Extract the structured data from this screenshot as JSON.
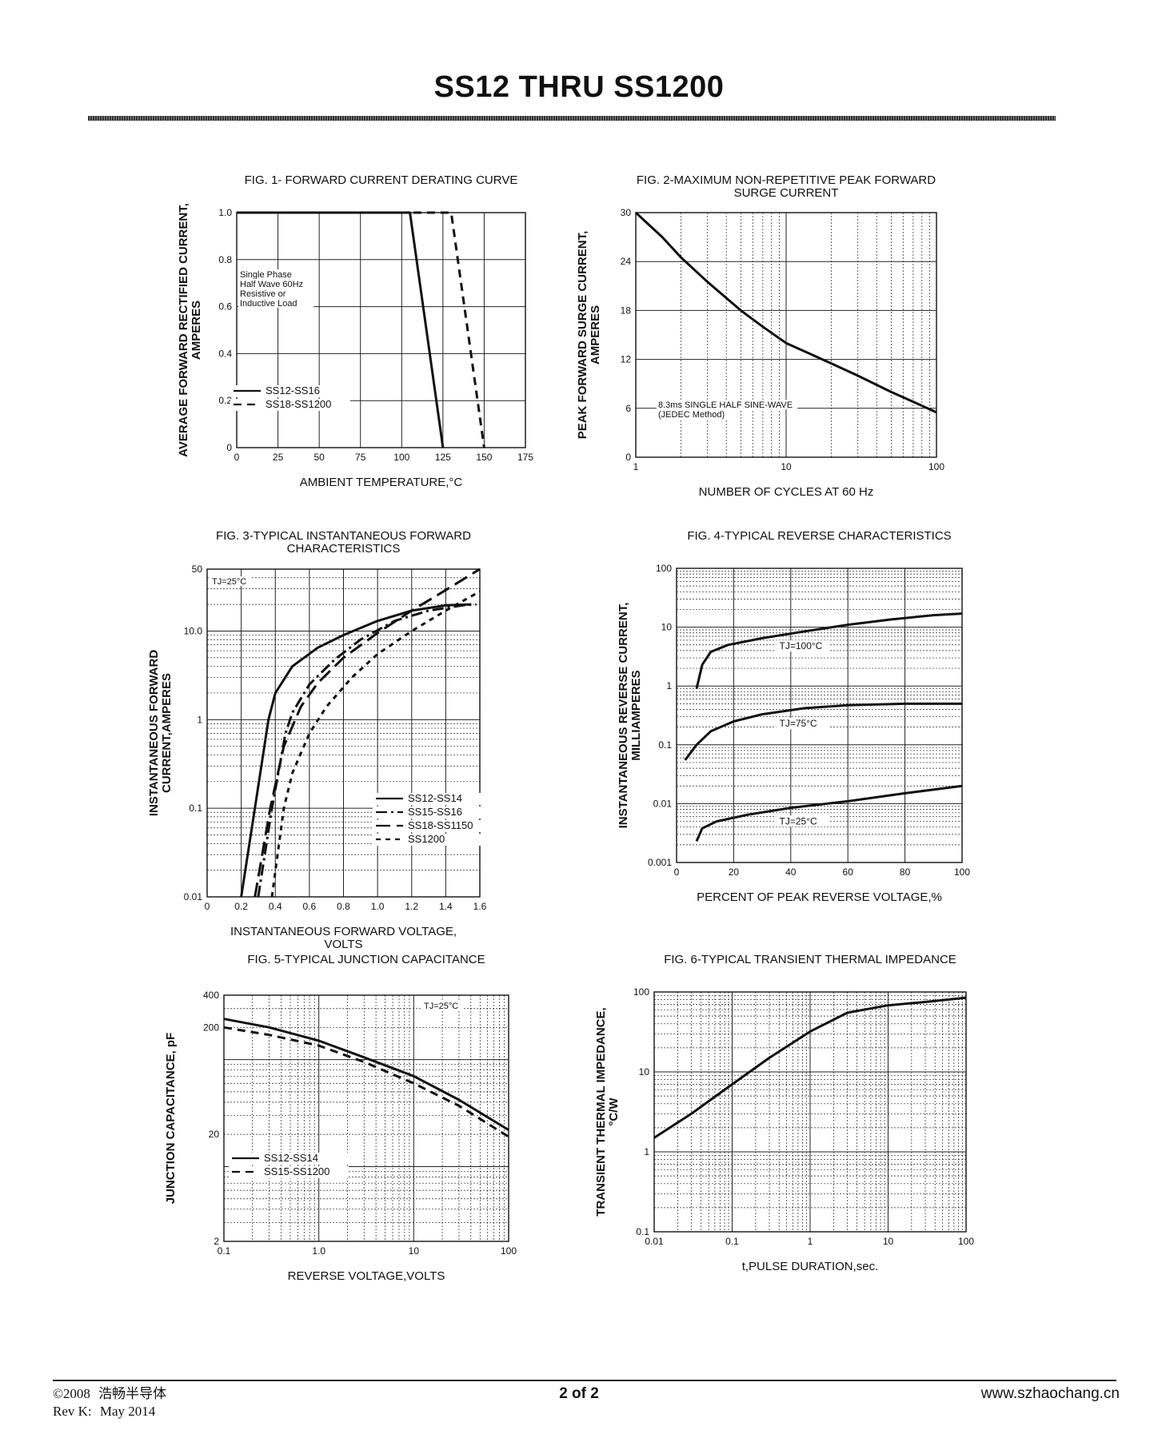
{
  "page": {
    "title": "SS12 THRU SS1200",
    "footer": {
      "copyright": "©2008",
      "company": "浩畅半导体",
      "revision": "Rev K:",
      "date": "May 2014",
      "page_number": "2 of 2",
      "website": "www.szhaochang.cn"
    }
  },
  "chart_data": [
    {
      "id": "fig1",
      "type": "line",
      "title": "FIG. 1- FORWARD CURRENT DERATING CURVE",
      "title2": "",
      "xlabel": "AMBIENT TEMPERATURE,°C",
      "xlabel2": "",
      "ylabel": "AVERAGE FORWARD RECTIFIED CURRENT,",
      "ylabel2": "AMPERES",
      "xscale": "linear",
      "yscale": "linear",
      "xlim": [
        0,
        175
      ],
      "ylim": [
        0,
        1.0
      ],
      "xticks": [
        0,
        25,
        50,
        75,
        100,
        125,
        150,
        175
      ],
      "xtick_labels": [
        "0",
        "25",
        "50",
        "75",
        "100",
        "125",
        "150",
        "175"
      ],
      "yticks": [
        0,
        0.2,
        0.4,
        0.6,
        0.8,
        1.0
      ],
      "ytick_labels": [
        "0",
        "0.2",
        "0.4",
        "0.6",
        "0.8",
        "1.0"
      ],
      "grid": true,
      "annotations": [
        "Single Phase",
        "Half Wave 60Hz",
        "Resistive or",
        "Inductive Load"
      ],
      "series": [
        {
          "name": "SS12-SS16",
          "style": "solid",
          "x": [
            0,
            105,
            125
          ],
          "y": [
            1.0,
            1.0,
            0
          ]
        },
        {
          "name": "SS18-SS1200",
          "style": "dashed",
          "x": [
            0,
            130,
            150
          ],
          "y": [
            1.0,
            1.0,
            0
          ]
        }
      ]
    },
    {
      "id": "fig2",
      "type": "line",
      "title": "FIG. 2-MAXIMUM NON-REPETITIVE PEAK FORWARD",
      "title2": "SURGE CURRENT",
      "xlabel": "NUMBER OF CYCLES AT 60 Hz",
      "xlabel2": "",
      "ylabel": "PEAK FORWARD SURGE CURRENT,",
      "ylabel2": "AMPERES",
      "xscale": "log",
      "yscale": "linear",
      "xlim": [
        1,
        100
      ],
      "ylim": [
        0,
        30
      ],
      "xticks": [
        1,
        10,
        100
      ],
      "xtick_labels": [
        "1",
        "10",
        "100"
      ],
      "yticks": [
        0,
        6,
        12,
        18,
        24,
        30
      ],
      "ytick_labels": [
        "0",
        "6",
        "12",
        "18",
        "24",
        "30"
      ],
      "grid": true,
      "annotations": [
        "8.3ms SINGLE HALF SINE-WAVE",
        "(JEDEC Method)"
      ],
      "series": [
        {
          "name": "",
          "style": "solid",
          "x": [
            1,
            1.5,
            2,
            3,
            5,
            7,
            10,
            20,
            30,
            50,
            70,
            100
          ],
          "y": [
            30,
            27,
            24.5,
            21.5,
            18,
            16,
            14,
            11.5,
            10,
            8,
            6.8,
            5.5
          ]
        }
      ]
    },
    {
      "id": "fig3",
      "type": "line",
      "title": "FIG. 3-TYPICAL INSTANTANEOUS FORWARD",
      "title2": "CHARACTERISTICS",
      "xlabel": "INSTANTANEOUS FORWARD VOLTAGE,",
      "xlabel2": "VOLTS",
      "ylabel": "INSTANTANEOUS FORWARD",
      "ylabel2": "CURRENT,AMPERES",
      "xscale": "linear",
      "yscale": "log",
      "xlim": [
        0,
        1.6
      ],
      "ylim": [
        0.01,
        50
      ],
      "xticks": [
        0,
        0.2,
        0.4,
        0.6,
        0.8,
        1.0,
        1.2,
        1.4,
        1.6
      ],
      "xtick_labels": [
        "0",
        "0.2",
        "0.4",
        "0.6",
        "0.8",
        "1.0",
        "1.2",
        "1.4",
        "1.6"
      ],
      "yticks": [
        0.01,
        0.1,
        1,
        10,
        50
      ],
      "ytick_labels": [
        "0.01",
        "0.1",
        "1",
        "10.0",
        "50"
      ],
      "grid": true,
      "annotations": [
        "TJ=25°C"
      ],
      "series": [
        {
          "name": "SS12-SS14",
          "style": "solid",
          "x": [
            0.2,
            0.28,
            0.36,
            0.4,
            0.5,
            0.65,
            0.8,
            1.0,
            1.2,
            1.4,
            1.55
          ],
          "y": [
            0.01,
            0.1,
            1,
            2,
            4,
            6.5,
            9,
            13,
            17,
            19.5,
            20
          ]
        },
        {
          "name": "SS15-SS16",
          "style": "dash-dot",
          "x": [
            0.3,
            0.38,
            0.46,
            0.5,
            0.6,
            0.75,
            0.9,
            1.1,
            1.3,
            1.5,
            1.58
          ],
          "y": [
            0.01,
            0.1,
            0.7,
            1.2,
            2.5,
            4.8,
            8,
            13,
            17,
            19.5,
            20
          ]
        },
        {
          "name": "SS18-SS1150",
          "style": "long-dash",
          "x": [
            0.28,
            0.37,
            0.45,
            0.55,
            0.65,
            0.8,
            1.0,
            1.2,
            1.4,
            1.6
          ],
          "y": [
            0.01,
            0.1,
            0.5,
            1.4,
            2.6,
            5,
            9.5,
            17,
            29,
            50
          ]
        },
        {
          "name": "SS1200",
          "style": "short-dash",
          "x": [
            0.38,
            0.45,
            0.5,
            0.6,
            0.7,
            0.85,
            1.0,
            1.2,
            1.4,
            1.6
          ],
          "y": [
            0.01,
            0.1,
            0.25,
            0.7,
            1.4,
            3,
            5.5,
            10,
            17,
            28
          ]
        }
      ]
    },
    {
      "id": "fig4",
      "type": "line",
      "title": "FIG. 4-TYPICAL REVERSE CHARACTERISTICS",
      "title2": "",
      "xlabel": "PERCENT OF PEAK REVERSE VOLTAGE,%",
      "xlabel2": "",
      "ylabel": "INSTANTANEOUS REVERSE CURRENT,",
      "ylabel2": "MILLIAMPERES",
      "xscale": "linear",
      "yscale": "log",
      "xlim": [
        0,
        100
      ],
      "ylim": [
        0.001,
        100
      ],
      "xticks": [
        0,
        20,
        40,
        60,
        80,
        100
      ],
      "xtick_labels": [
        "0",
        "20",
        "40",
        "60",
        "80",
        "100"
      ],
      "yticks": [
        0.001,
        0.01,
        0.1,
        1,
        10,
        100
      ],
      "ytick_labels": [
        "0.001",
        "0.01",
        "0.1",
        "1",
        "10",
        "100"
      ],
      "grid": true,
      "annotations": [],
      "series": [
        {
          "name": "TJ=100°C",
          "style": "solid",
          "x": [
            7,
            9,
            12,
            18,
            30,
            45,
            60,
            75,
            90,
            100
          ],
          "y": [
            0.9,
            2.3,
            3.8,
            5,
            6.5,
            8.5,
            11,
            13.5,
            16,
            17
          ]
        },
        {
          "name": "TJ=75°C",
          "style": "solid",
          "x": [
            3,
            7,
            12,
            20,
            30,
            45,
            60,
            80,
            100
          ],
          "y": [
            0.055,
            0.1,
            0.17,
            0.25,
            0.33,
            0.42,
            0.47,
            0.5,
            0.5
          ]
        },
        {
          "name": "TJ=25°C",
          "style": "solid",
          "x": [
            7,
            9,
            14,
            25,
            40,
            60,
            80,
            100
          ],
          "y": [
            0.0023,
            0.0038,
            0.005,
            0.0065,
            0.0085,
            0.011,
            0.015,
            0.02
          ]
        }
      ]
    },
    {
      "id": "fig5",
      "type": "line",
      "title": "FIG. 5-TYPICAL JUNCTION CAPACITANCE",
      "title2": "",
      "xlabel": "REVERSE VOLTAGE,VOLTS",
      "xlabel2": "",
      "ylabel": "JUNCTION CAPACITANCE, pF",
      "ylabel2": "",
      "xscale": "log",
      "yscale": "log",
      "xlim": [
        0.1,
        100
      ],
      "ylim": [
        2,
        400
      ],
      "xticks": [
        0.1,
        1,
        10,
        100
      ],
      "xtick_labels": [
        "0.1",
        "1.0",
        "10",
        "100"
      ],
      "yticks": [
        2,
        20,
        200,
        400
      ],
      "ytick_labels": [
        "2",
        "20",
        "200",
        "400"
      ],
      "grid": true,
      "annotations": [
        "TJ=25°C"
      ],
      "series": [
        {
          "name": "SS12-SS14",
          "style": "solid",
          "x": [
            0.1,
            0.3,
            1,
            3,
            10,
            30,
            100
          ],
          "y": [
            240,
            200,
            150,
            105,
            70,
            42,
            22
          ]
        },
        {
          "name": "SS15-SS1200",
          "style": "dashed",
          "x": [
            0.1,
            0.3,
            1,
            3,
            10,
            30,
            100
          ],
          "y": [
            200,
            170,
            135,
            95,
            60,
            37,
            19
          ]
        }
      ]
    },
    {
      "id": "fig6",
      "type": "line",
      "title": "FIG. 6-TYPICAL TRANSIENT THERMAL IMPEDANCE",
      "title2": "",
      "xlabel": "t,PULSE DURATION,sec.",
      "xlabel2": "",
      "ylabel": "TRANSIENT THERMAL IMPEDANCE,",
      "ylabel2": "°C/W",
      "xscale": "log",
      "yscale": "log",
      "xlim": [
        0.01,
        100
      ],
      "ylim": [
        0.1,
        100
      ],
      "xticks": [
        0.01,
        0.1,
        1,
        10,
        100
      ],
      "xtick_labels": [
        "0.01",
        "0.1",
        "1",
        "10",
        "100"
      ],
      "yticks": [
        0.1,
        1,
        10,
        100
      ],
      "ytick_labels": [
        "0.1",
        "1",
        "10",
        "100"
      ],
      "grid": true,
      "annotations": [],
      "series": [
        {
          "name": "",
          "style": "solid",
          "x": [
            0.01,
            0.03,
            0.1,
            0.3,
            1,
            3,
            10,
            30,
            100
          ],
          "y": [
            1.5,
            3,
            7,
            15,
            32,
            55,
            68,
            75,
            85
          ]
        }
      ]
    }
  ]
}
